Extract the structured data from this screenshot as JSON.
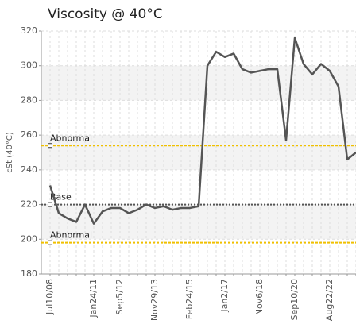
{
  "chart_data": {
    "type": "line",
    "title": "Viscosity @ 40°C",
    "y_label": "cSt (40°C)",
    "categories": [
      "Jul10/08",
      null,
      null,
      null,
      null,
      "Jan24/11",
      null,
      null,
      "Sep5/12",
      null,
      null,
      null,
      "Nov29/13",
      null,
      null,
      null,
      "Feb24/15",
      null,
      null,
      null,
      "Jan2/17",
      null,
      null,
      null,
      "Nov6/18",
      null,
      null,
      null,
      "Sep10/20",
      null,
      null,
      null,
      "Aug22/22",
      null,
      null,
      null
    ],
    "series": [
      {
        "color": "#555555",
        "values": [
          231,
          215,
          212,
          210,
          220,
          209,
          216,
          218,
          218,
          215,
          217,
          220,
          218,
          219,
          217,
          218,
          218,
          219,
          300,
          308,
          305,
          307,
          298,
          296,
          297,
          298,
          298,
          257,
          316,
          301,
          295,
          301,
          297,
          288,
          246,
          250
        ]
      }
    ],
    "reference_lines": [
      {
        "label": "Abnormal",
        "value": 254,
        "color": "#f0c000"
      },
      {
        "label": "Base",
        "value": 220,
        "color": "#555555"
      },
      {
        "label": "Abnormal",
        "value": 198,
        "color": "#f0c000"
      }
    ],
    "ylim": [
      180,
      320
    ],
    "yticks": [
      180,
      200,
      220,
      240,
      260,
      280,
      300,
      320
    ],
    "grid": true
  }
}
